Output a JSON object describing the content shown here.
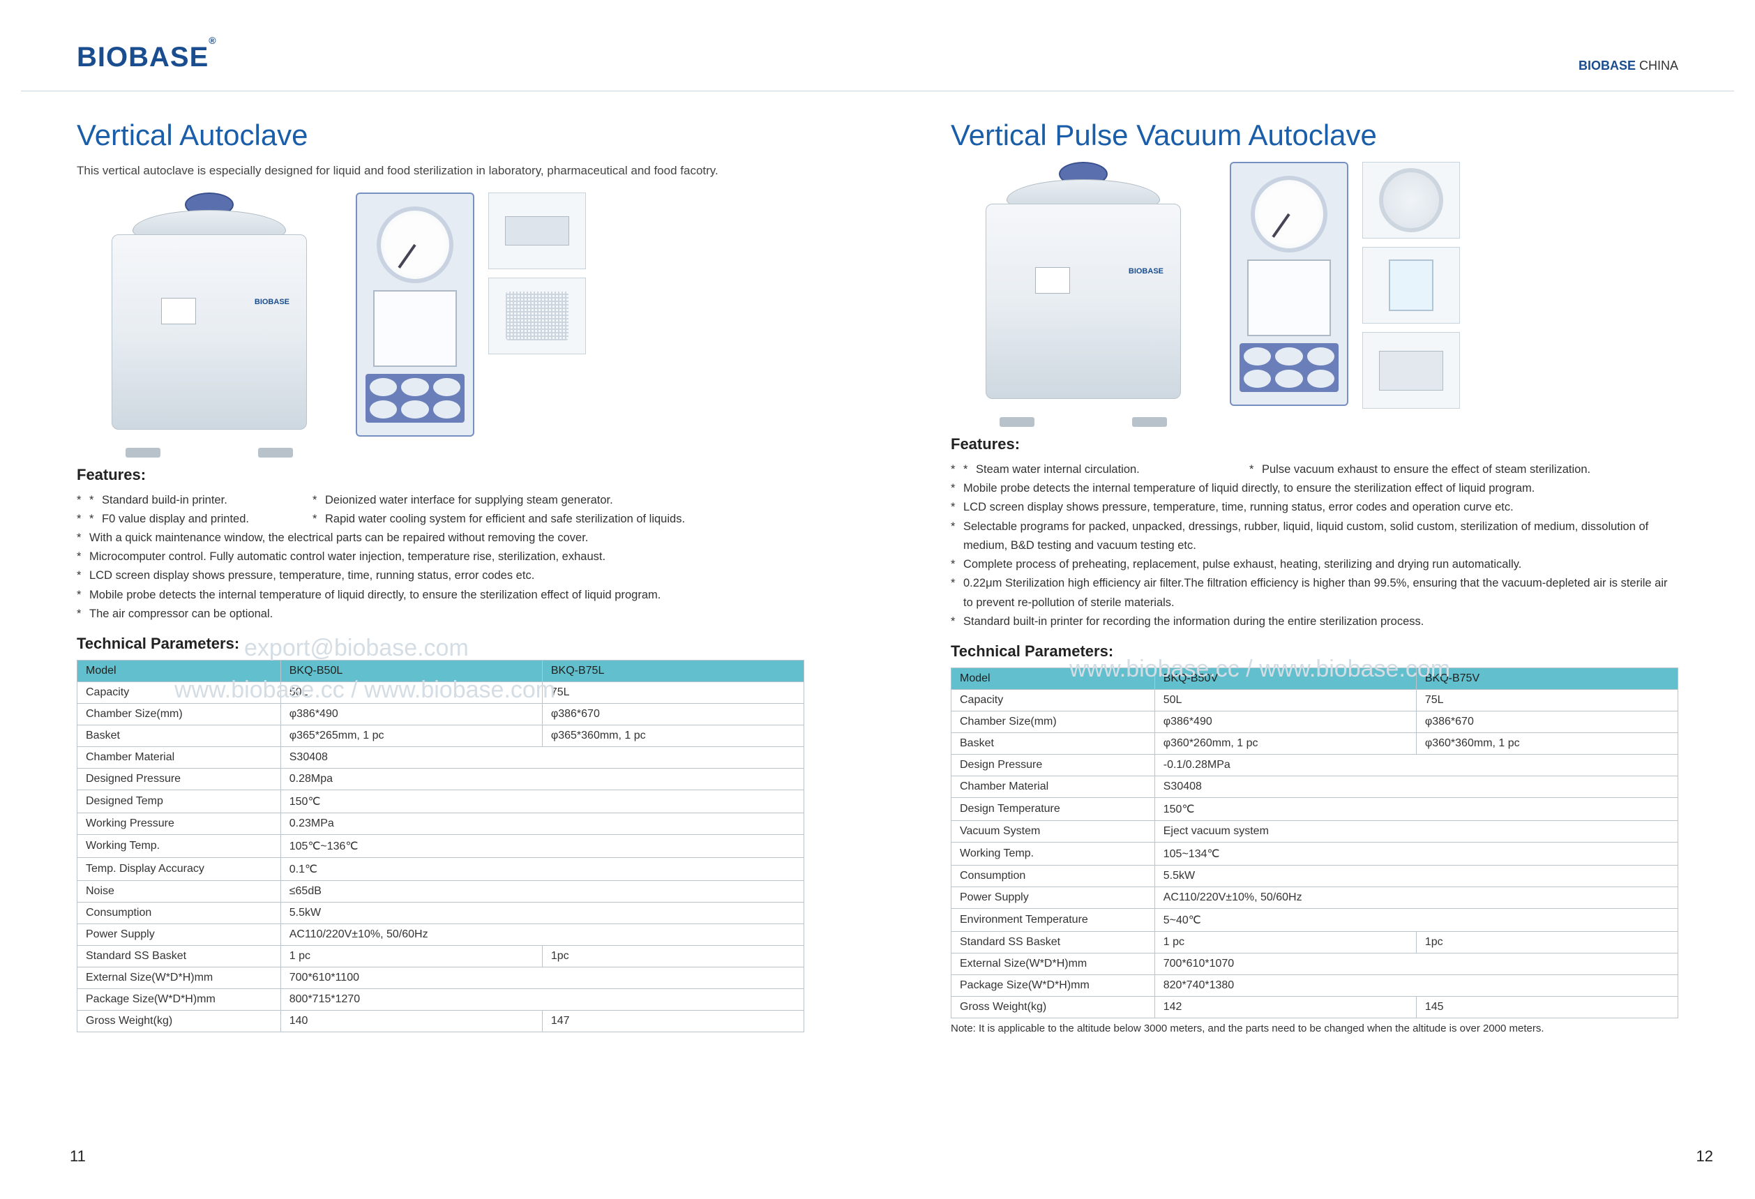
{
  "header": {
    "logo": "BIOBASE",
    "logo_sup": "®",
    "right_brand": "BIOBASE",
    "right_suffix": " CHINA",
    "accent_color": "#1a4d8f"
  },
  "left": {
    "title": "Vertical Autoclave",
    "intro": "This vertical autoclave is especially designed for liquid and food sterilization in laboratory, pharmaceutical and food facotry.",
    "features_heading": "Features:",
    "features_row1_a": "Standard build-in printer.",
    "features_row1_b": "Deionized water interface for supplying steam generator.",
    "features_row2_a": "F0 value display and printed.",
    "features_row2_b": "Rapid water cooling system for efficient and safe sterilization of liquids.",
    "features": [
      "With a quick maintenance window, the electrical parts can be repaired without removing the cover.",
      "Microcomputer control. Fully automatic control water injection, temperature rise, sterilization, exhaust.",
      "LCD screen display shows pressure, temperature, time, running status, error codes etc.",
      "Mobile probe detects the internal temperature of liquid directly, to ensure the sterilization effect of liquid program.",
      "The air compressor can be optional."
    ],
    "tech_heading": "Technical Parameters:",
    "table": {
      "header_bg": "#62c0ce",
      "columns": [
        "Model",
        "BKQ-B50L",
        "BKQ-B75L"
      ],
      "rows": [
        {
          "label": "Capacity",
          "v": [
            "50L",
            "75L"
          ]
        },
        {
          "label": "Chamber Size(mm)",
          "v": [
            "φ386*490",
            "φ386*670"
          ]
        },
        {
          "label": "Basket",
          "v": [
            "φ365*265mm, 1 pc",
            "φ365*360mm, 1 pc"
          ]
        },
        {
          "label": "Chamber Material",
          "v": [
            "S30408"
          ],
          "span": 2
        },
        {
          "label": "Designed Pressure",
          "v": [
            "0.28Mpa"
          ],
          "span": 2
        },
        {
          "label": "Designed Temp",
          "v": [
            "150℃"
          ],
          "span": 2
        },
        {
          "label": "Working Pressure",
          "v": [
            "0.23MPa"
          ],
          "span": 2
        },
        {
          "label": "Working Temp.",
          "v": [
            "105℃~136℃"
          ],
          "span": 2
        },
        {
          "label": "Temp. Display Accuracy",
          "v": [
            "0.1℃"
          ],
          "span": 2
        },
        {
          "label": "Noise",
          "v": [
            "≤65dB"
          ],
          "span": 2
        },
        {
          "label": "Consumption",
          "v": [
            "5.5kW"
          ],
          "span": 2
        },
        {
          "label": "Power Supply",
          "v": [
            "AC110/220V±10%, 50/60Hz"
          ],
          "span": 2
        },
        {
          "label": "Standard SS Basket",
          "v": [
            "1 pc",
            "1pc"
          ]
        },
        {
          "label": "External Size(W*D*H)mm",
          "v": [
            "700*610*1100"
          ],
          "span": 2
        },
        {
          "label": "Package Size(W*D*H)mm",
          "v": [
            "800*715*1270"
          ],
          "span": 2
        },
        {
          "label": "Gross Weight(kg)",
          "v": [
            "140",
            "147"
          ]
        }
      ]
    },
    "page_number": "11"
  },
  "right": {
    "title": "Vertical Pulse Vacuum Autoclave",
    "features_heading": "Features:",
    "features_row1_a": "Steam water internal circulation.",
    "features_row1_b": "Pulse vacuum exhaust to ensure the effect of steam sterilization.",
    "features": [
      "Mobile probe detects the internal temperature of liquid directly, to ensure the sterilization effect of liquid program.",
      "LCD screen display shows pressure, temperature, time, running status, error codes and operation curve etc.",
      "Selectable programs for packed, unpacked, dressings, rubber, liquid, liquid custom, solid custom, sterilization of medium, dissolution of medium, B&D testing and vacuum testing etc.",
      "Complete process of preheating, replacement, pulse exhaust, heating, sterilizing and drying run automatically.",
      "0.22μm Sterilization high efficiency air filter.The filtration efficiency is higher than 99.5%, ensuring that the vacuum-depleted air is sterile air to prevent re-pollution of sterile materials.",
      "Standard built-in printer for recording the information during the entire sterilization process."
    ],
    "tech_heading": "Technical Parameters:",
    "table": {
      "header_bg": "#62c0ce",
      "columns": [
        "Model",
        "BKQ-B50V",
        "BKQ-B75V"
      ],
      "rows": [
        {
          "label": "Capacity",
          "v": [
            "50L",
            "75L"
          ]
        },
        {
          "label": "Chamber Size(mm)",
          "v": [
            "φ386*490",
            "φ386*670"
          ]
        },
        {
          "label": "Basket",
          "v": [
            "φ360*260mm, 1 pc",
            "φ360*360mm, 1 pc"
          ]
        },
        {
          "label": "Design Pressure",
          "v": [
            "-0.1/0.28MPa"
          ],
          "span": 2
        },
        {
          "label": "Chamber Material",
          "v": [
            "S30408"
          ],
          "span": 2
        },
        {
          "label": "Design Temperature",
          "v": [
            "150℃"
          ],
          "span": 2
        },
        {
          "label": "Vacuum System",
          "v": [
            "Eject vacuum system"
          ],
          "span": 2
        },
        {
          "label": "Working Temp.",
          "v": [
            "105~134℃"
          ],
          "span": 2
        },
        {
          "label": "Consumption",
          "v": [
            "5.5kW"
          ],
          "span": 2
        },
        {
          "label": "Power Supply",
          "v": [
            "AC110/220V±10%, 50/60Hz"
          ],
          "span": 2
        },
        {
          "label": "Environment Temperature",
          "v": [
            "5~40℃"
          ],
          "span": 2
        },
        {
          "label": "Standard SS Basket",
          "v": [
            "1 pc",
            "1pc"
          ]
        },
        {
          "label": "External Size(W*D*H)mm",
          "v": [
            "700*610*1070"
          ],
          "span": 2
        },
        {
          "label": "Package Size(W*D*H)mm",
          "v": [
            "820*740*1380"
          ],
          "span": 2
        },
        {
          "label": "Gross Weight(kg)",
          "v": [
            "142",
            "145"
          ]
        }
      ]
    },
    "note": "Note: It is applicable to the altitude below 3000 meters, and the parts need to be changed when the altitude is over 2000 meters.",
    "page_number": "12"
  },
  "watermarks": {
    "wm1": "export@biobase.com",
    "wm2": "www.biobase.cc / www.biobase.com",
    "wm3": "www.biobase.cc / www.biobase.com",
    "color": "#d5dde4"
  },
  "styling": {
    "title_color": "#1a5da8",
    "title_fontsize": 42,
    "body_fontsize": 17,
    "table_border_color": "#b9c4cd",
    "table_header_bg": "#62c0ce",
    "page_bg": "#ffffff"
  }
}
